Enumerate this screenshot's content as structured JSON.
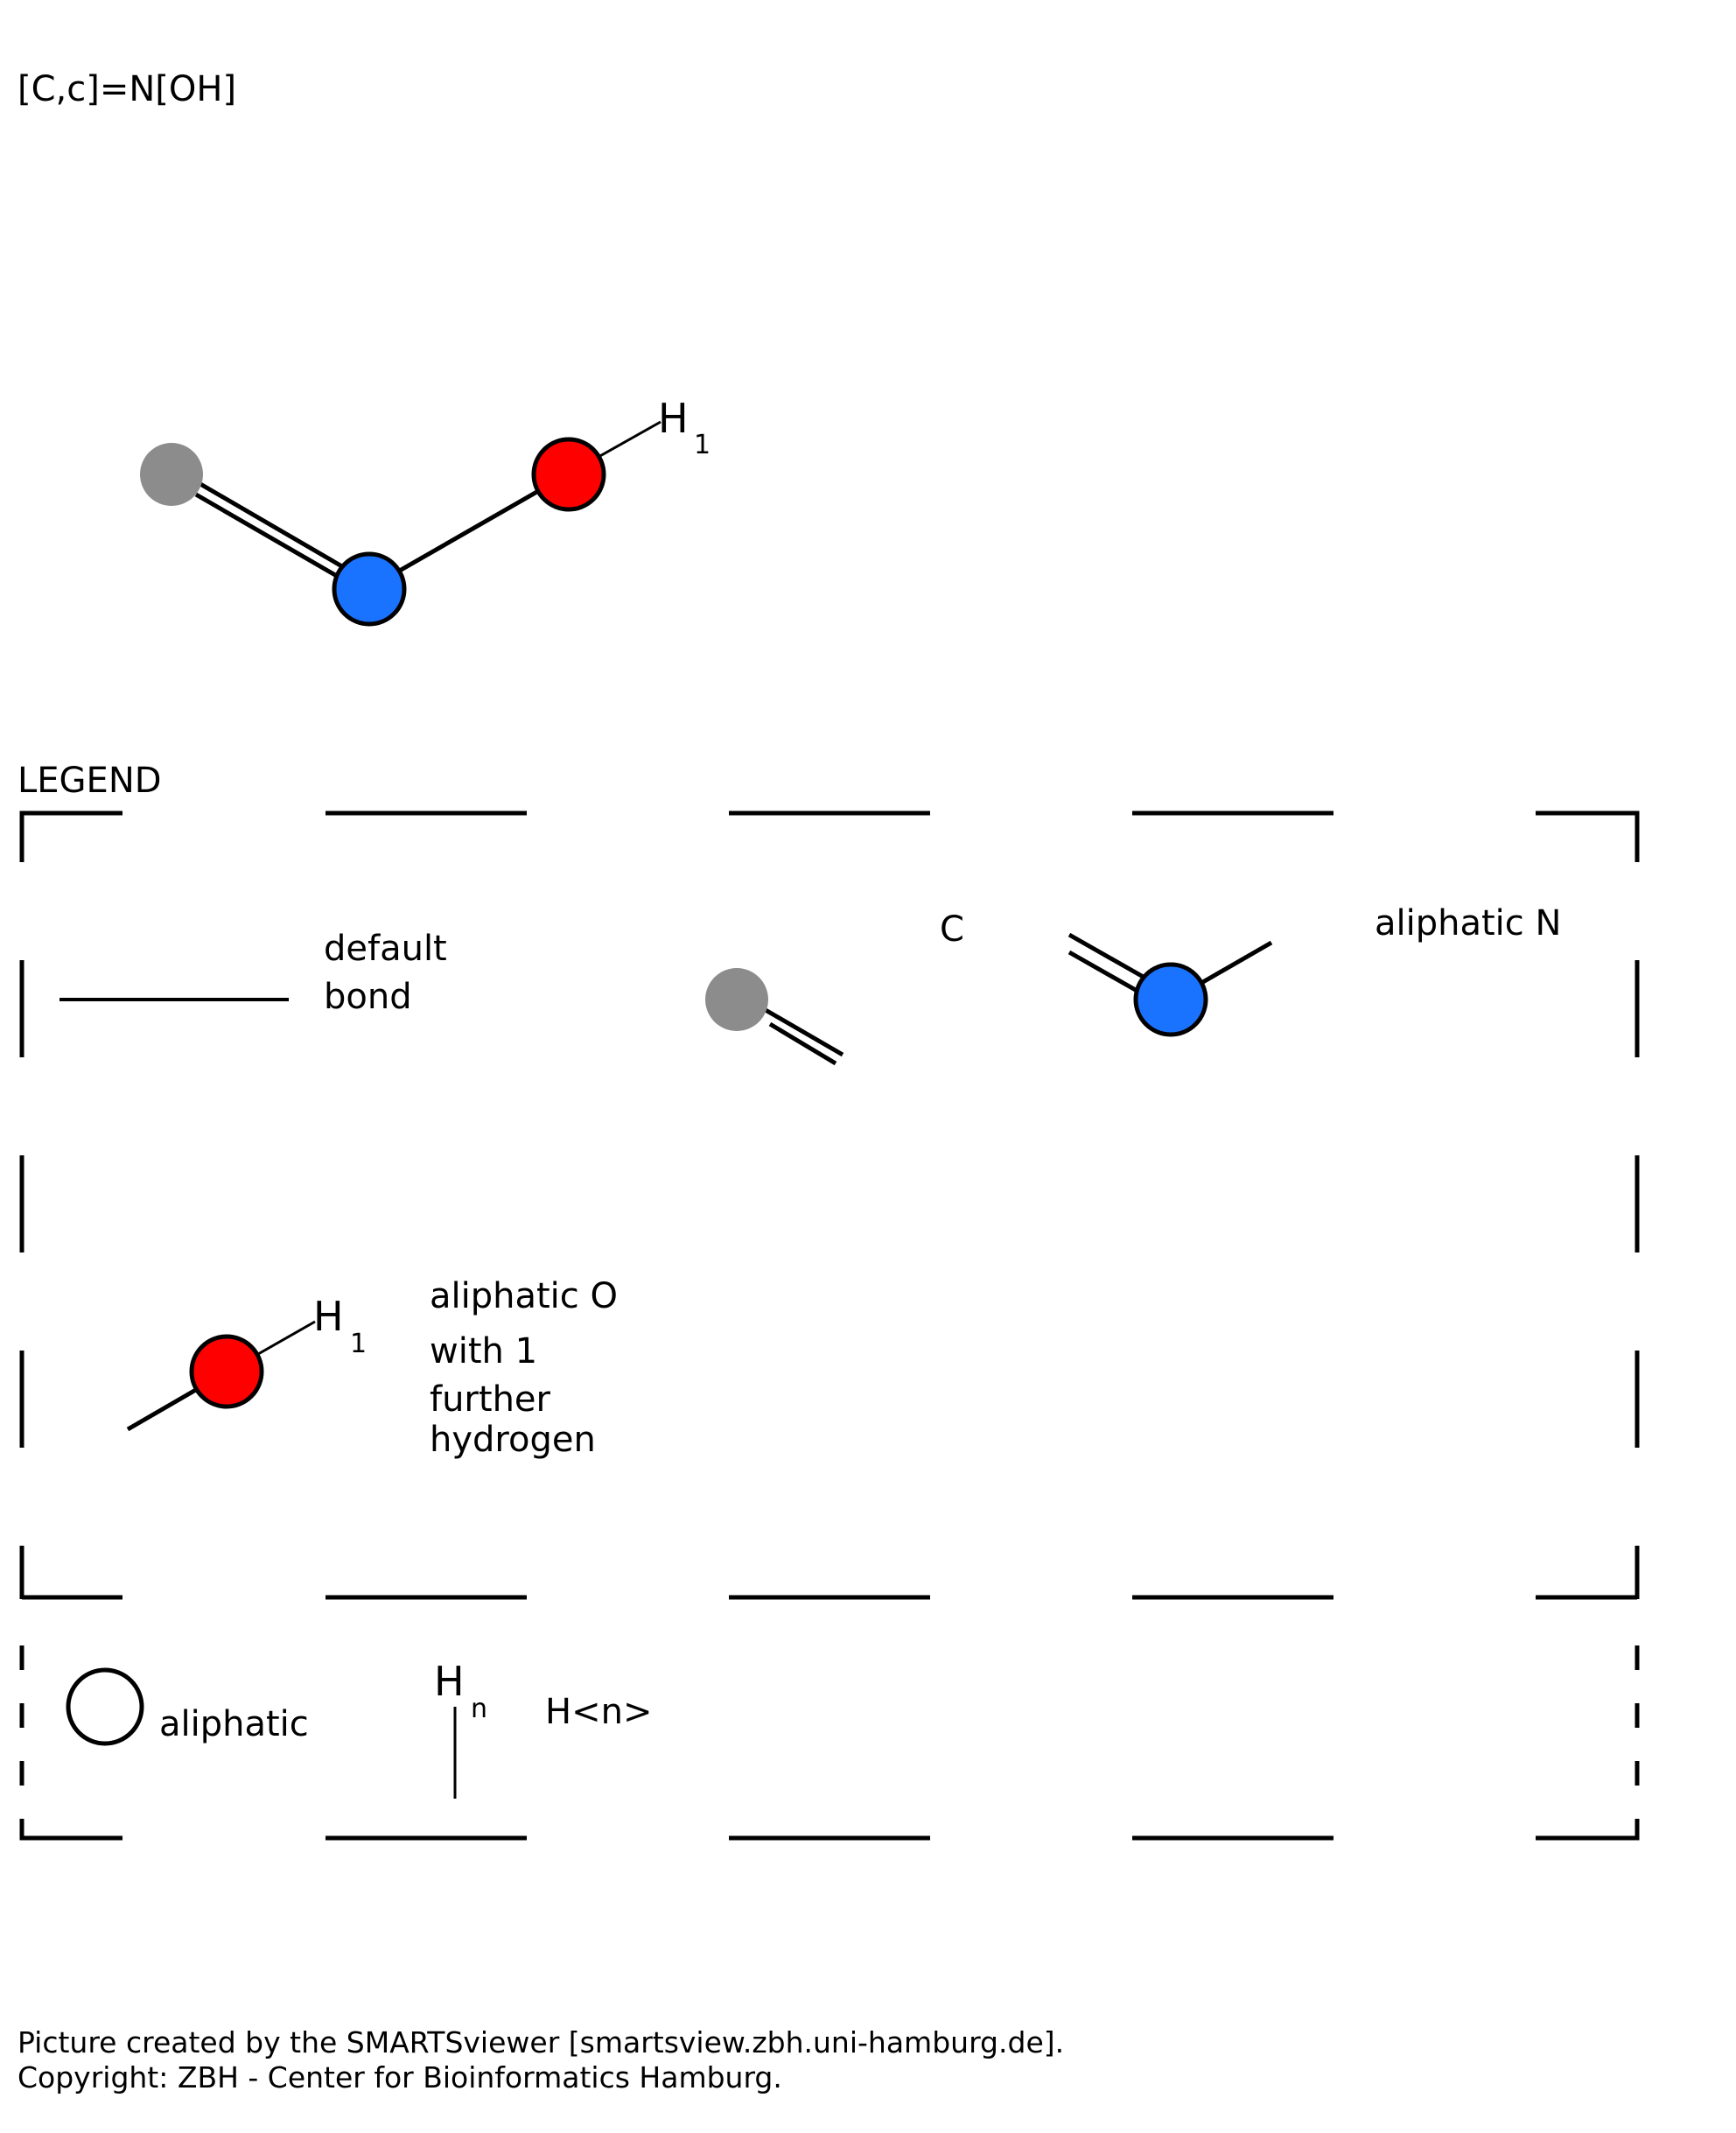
{
  "smarts_pattern": "[C,c]=N[OH]",
  "molecule": {
    "atoms": [
      {
        "element": "C,c",
        "type": "aliphatic or aromatic carbon",
        "color": "#8c8c8c"
      },
      {
        "element": "N",
        "type": "aliphatic",
        "color": "#1a73ff"
      },
      {
        "element": "O",
        "type": "aliphatic",
        "hydrogens": 1,
        "color": "#ff0000"
      }
    ],
    "bonds": [
      {
        "from": 0,
        "to": 1,
        "order": 2
      },
      {
        "from": 1,
        "to": 2,
        "order": 1
      }
    ],
    "hydrogen_symbol": "H",
    "hydrogen_count": "1"
  },
  "legend": {
    "title": "LEGEND",
    "default_bond": {
      "line1": "default",
      "line2": "bond"
    },
    "carbon_label": "C",
    "nitrogen_label": "aliphatic N",
    "oxygen_label": {
      "line1": "aliphatic O",
      "line2": "with 1",
      "line3": "further",
      "line4": "hydrogen"
    },
    "oxygen_h_symbol": "H",
    "oxygen_h_count": "1",
    "key": {
      "aliphatic_label": "aliphatic",
      "hn_symbol": "H",
      "hn_subscript": "n",
      "hn_label": "H<n>"
    }
  },
  "footer": {
    "line1": "Picture created by the SMARTSviewer [smartsview.zbh.uni-hamburg.de].",
    "line2": "Copyright: ZBH - Center for Bioinformatics Hamburg."
  }
}
